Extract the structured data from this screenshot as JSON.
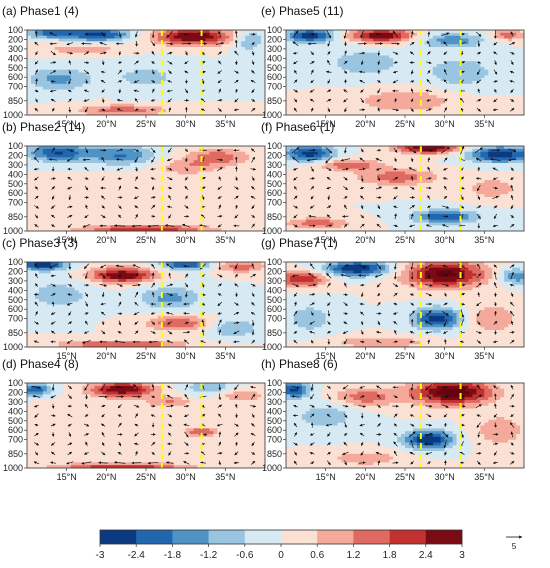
{
  "chart_data": [
    {
      "type": "heatmap",
      "title": "(a) Phase1  (4)",
      "phase": 1,
      "count": 4,
      "x_ticks": [
        "15°N",
        "20°N",
        "25°N",
        "30°N",
        "35°N"
      ],
      "x_values": [
        15,
        20,
        25,
        30,
        35
      ],
      "xlim": [
        10,
        40
      ],
      "y_ticks": [
        "100",
        "200",
        "300",
        "400",
        "500",
        "600",
        "700",
        "850",
        "1000"
      ],
      "y_values": [
        100,
        200,
        300,
        400,
        500,
        600,
        700,
        850,
        1000
      ],
      "ylim": [
        100,
        1000
      ],
      "reference_lines_lat": [
        27,
        32
      ],
      "blobs": [
        {
          "lat": 13,
          "p": 130,
          "v": -2.0,
          "sl": 3,
          "sp": 60
        },
        {
          "lat": 19,
          "p": 150,
          "v": -2.6,
          "sl": 4,
          "sp": 70
        },
        {
          "lat": 31,
          "p": 170,
          "v": 3.0,
          "sl": 5,
          "sp": 90
        },
        {
          "lat": 38,
          "p": 200,
          "v": -1.3,
          "sl": 2,
          "sp": 120
        },
        {
          "lat": 17,
          "p": 300,
          "v": 1.0,
          "sl": 5,
          "sp": 60
        },
        {
          "lat": 14,
          "p": 620,
          "v": -1.4,
          "sl": 4,
          "sp": 120
        },
        {
          "lat": 25,
          "p": 600,
          "v": -0.8,
          "sl": 5,
          "sp": 150
        },
        {
          "lat": 22,
          "p": 950,
          "v": 1.5,
          "sl": 6,
          "sp": 60
        }
      ]
    },
    {
      "type": "heatmap",
      "title": "(b) Phase2  (14)",
      "phase": 2,
      "count": 14,
      "x_ticks": [
        "15°N",
        "20°N",
        "25°N",
        "30°N",
        "35°N"
      ],
      "x_values": [
        15,
        20,
        25,
        30,
        35
      ],
      "xlim": [
        10,
        40
      ],
      "y_ticks": [
        "100",
        "200",
        "300",
        "400",
        "500",
        "600",
        "700",
        "850",
        "1000"
      ],
      "y_values": [
        100,
        200,
        300,
        400,
        500,
        600,
        700,
        850,
        1000
      ],
      "ylim": [
        100,
        1000
      ],
      "reference_lines_lat": [
        27,
        32
      ],
      "blobs": [
        {
          "lat": 14,
          "p": 170,
          "v": -2.4,
          "sl": 4,
          "sp": 90
        },
        {
          "lat": 22,
          "p": 200,
          "v": -1.8,
          "sl": 4,
          "sp": 100
        },
        {
          "lat": 34,
          "p": 220,
          "v": 1.6,
          "sl": 4,
          "sp": 90
        },
        {
          "lat": 30,
          "p": 330,
          "v": 1.0,
          "sl": 4,
          "sp": 80
        },
        {
          "lat": 20,
          "p": 650,
          "v": 0.5,
          "sl": 6,
          "sp": 200
        },
        {
          "lat": 25,
          "p": 980,
          "v": 2.4,
          "sl": 8,
          "sp": 40
        }
      ]
    },
    {
      "type": "heatmap",
      "title": "(c) Phase3  (3)",
      "phase": 3,
      "count": 3,
      "x_ticks": [
        "15°N",
        "20°N",
        "25°N",
        "30°N",
        "35°N"
      ],
      "x_values": [
        15,
        20,
        25,
        30,
        35
      ],
      "xlim": [
        10,
        40
      ],
      "y_ticks": [
        "100",
        "200",
        "300",
        "400",
        "500",
        "600",
        "700",
        "850",
        "1000"
      ],
      "y_values": [
        100,
        200,
        300,
        400,
        500,
        600,
        700,
        850,
        1000
      ],
      "ylim": [
        100,
        1000
      ],
      "reference_lines_lat": [
        27,
        32
      ],
      "blobs": [
        {
          "lat": 12,
          "p": 130,
          "v": -2.8,
          "sl": 3,
          "sp": 60
        },
        {
          "lat": 22,
          "p": 240,
          "v": 3.0,
          "sl": 4,
          "sp": 80
        },
        {
          "lat": 30,
          "p": 130,
          "v": -2.4,
          "sl": 3,
          "sp": 50
        },
        {
          "lat": 37,
          "p": 150,
          "v": 1.6,
          "sl": 3,
          "sp": 60
        },
        {
          "lat": 14,
          "p": 450,
          "v": -1.0,
          "sl": 4,
          "sp": 150
        },
        {
          "lat": 28,
          "p": 480,
          "v": -1.4,
          "sl": 4,
          "sp": 120
        },
        {
          "lat": 29,
          "p": 750,
          "v": 1.8,
          "sl": 4,
          "sp": 80
        },
        {
          "lat": 36,
          "p": 800,
          "v": -1.2,
          "sl": 3,
          "sp": 100
        },
        {
          "lat": 22,
          "p": 970,
          "v": 2.0,
          "sl": 8,
          "sp": 40
        }
      ]
    },
    {
      "type": "heatmap",
      "title": "(d) Phase4  (8)",
      "phase": 4,
      "count": 8,
      "x_ticks": [
        "15°N",
        "20°N",
        "25°N",
        "30°N",
        "35°N"
      ],
      "x_values": [
        15,
        20,
        25,
        30,
        35
      ],
      "xlim": [
        10,
        40
      ],
      "y_ticks": [
        "100",
        "200",
        "300",
        "400",
        "500",
        "600",
        "700",
        "850",
        "1000"
      ],
      "y_values": [
        100,
        200,
        300,
        400,
        500,
        600,
        700,
        850,
        1000
      ],
      "ylim": [
        100,
        1000
      ],
      "reference_lines_lat": [
        27,
        32
      ],
      "blobs": [
        {
          "lat": 11,
          "p": 170,
          "v": -2.4,
          "sl": 2,
          "sp": 60
        },
        {
          "lat": 22,
          "p": 170,
          "v": 3.0,
          "sl": 4,
          "sp": 80
        },
        {
          "lat": 33,
          "p": 150,
          "v": -1.2,
          "sl": 3,
          "sp": 80
        },
        {
          "lat": 37,
          "p": 230,
          "v": 1.2,
          "sl": 3,
          "sp": 70
        },
        {
          "lat": 28,
          "p": 300,
          "v": 1.2,
          "sl": 3,
          "sp": 60
        },
        {
          "lat": 16,
          "p": 500,
          "v": 0.6,
          "sl": 5,
          "sp": 150
        },
        {
          "lat": 32,
          "p": 620,
          "v": 1.8,
          "sl": 2,
          "sp": 50
        },
        {
          "lat": 22,
          "p": 980,
          "v": 2.4,
          "sl": 8,
          "sp": 30
        }
      ]
    },
    {
      "type": "heatmap",
      "title": "(e) Phase5  (11)",
      "phase": 5,
      "count": 11,
      "x_ticks": [
        "15°N",
        "20°N",
        "25°N",
        "30°N",
        "35°N"
      ],
      "x_values": [
        15,
        20,
        25,
        30,
        35
      ],
      "xlim": [
        10,
        40
      ],
      "y_ticks": [
        "100",
        "200",
        "300",
        "400",
        "500",
        "600",
        "700",
        "850",
        "1000"
      ],
      "y_values": [
        100,
        200,
        300,
        400,
        500,
        600,
        700,
        850,
        1000
      ],
      "ylim": [
        100,
        1000
      ],
      "reference_lines_lat": [
        27,
        32
      ],
      "blobs": [
        {
          "lat": 13,
          "p": 160,
          "v": -2.8,
          "sl": 3,
          "sp": 70
        },
        {
          "lat": 22,
          "p": 160,
          "v": 3.0,
          "sl": 4,
          "sp": 70
        },
        {
          "lat": 31,
          "p": 210,
          "v": -1.6,
          "sl": 4,
          "sp": 80
        },
        {
          "lat": 38,
          "p": 150,
          "v": 1.6,
          "sl": 2,
          "sp": 60
        },
        {
          "lat": 20,
          "p": 450,
          "v": -1.0,
          "sl": 5,
          "sp": 150
        },
        {
          "lat": 32,
          "p": 550,
          "v": -1.2,
          "sl": 4,
          "sp": 150
        },
        {
          "lat": 25,
          "p": 850,
          "v": 1.2,
          "sl": 6,
          "sp": 120
        }
      ]
    },
    {
      "type": "heatmap",
      "title": "(f) Phase6  (1)",
      "phase": 6,
      "count": 1,
      "x_ticks": [
        "15°N",
        "20°N",
        "25°N",
        "30°N",
        "35°N"
      ],
      "x_values": [
        15,
        20,
        25,
        30,
        35
      ],
      "xlim": [
        10,
        40
      ],
      "y_ticks": [
        "100",
        "200",
        "300",
        "400",
        "500",
        "600",
        "700",
        "850",
        "1000"
      ],
      "y_values": [
        100,
        200,
        300,
        400,
        500,
        600,
        700,
        850,
        1000
      ],
      "ylim": [
        100,
        1000
      ],
      "reference_lines_lat": [
        27,
        32
      ],
      "blobs": [
        {
          "lat": 13,
          "p": 180,
          "v": -2.8,
          "sl": 3,
          "sp": 80
        },
        {
          "lat": 28,
          "p": 120,
          "v": 3.0,
          "sl": 4,
          "sp": 60
        },
        {
          "lat": 37,
          "p": 190,
          "v": -3.0,
          "sl": 4,
          "sp": 80
        },
        {
          "lat": 18,
          "p": 300,
          "v": 1.6,
          "sl": 4,
          "sp": 60
        },
        {
          "lat": 24,
          "p": 430,
          "v": 1.6,
          "sl": 5,
          "sp": 90
        },
        {
          "lat": 36,
          "p": 550,
          "v": 1.2,
          "sl": 3,
          "sp": 100
        },
        {
          "lat": 30,
          "p": 850,
          "v": -2.4,
          "sl": 4,
          "sp": 70
        },
        {
          "lat": 14,
          "p": 920,
          "v": 1.6,
          "sl": 4,
          "sp": 60
        }
      ]
    },
    {
      "type": "heatmap",
      "title": "(g) Phase7  (1)",
      "phase": 7,
      "count": 1,
      "x_ticks": [
        "15°N",
        "20°N",
        "25°N",
        "30°N",
        "35°N"
      ],
      "x_values": [
        15,
        20,
        25,
        30,
        35
      ],
      "xlim": [
        10,
        40
      ],
      "y_ticks": [
        "100",
        "200",
        "300",
        "400",
        "500",
        "600",
        "700",
        "850",
        "1000"
      ],
      "y_values": [
        100,
        200,
        300,
        400,
        500,
        600,
        700,
        850,
        1000
      ],
      "ylim": [
        100,
        1000
      ],
      "reference_lines_lat": [
        27,
        32
      ],
      "blobs": [
        {
          "lat": 12,
          "p": 280,
          "v": 2.4,
          "sl": 3,
          "sp": 80
        },
        {
          "lat": 19,
          "p": 170,
          "v": -3.0,
          "sl": 4,
          "sp": 80
        },
        {
          "lat": 30,
          "p": 230,
          "v": 3.2,
          "sl": 5,
          "sp": 140
        },
        {
          "lat": 39,
          "p": 250,
          "v": -1.8,
          "sl": 2,
          "sp": 80
        },
        {
          "lat": 13,
          "p": 700,
          "v": -1.0,
          "sl": 3,
          "sp": 150
        },
        {
          "lat": 29,
          "p": 700,
          "v": -2.8,
          "sl": 3,
          "sp": 110
        },
        {
          "lat": 36,
          "p": 700,
          "v": 1.2,
          "sl": 3,
          "sp": 150
        },
        {
          "lat": 22,
          "p": 950,
          "v": 1.2,
          "sl": 6,
          "sp": 60
        }
      ]
    },
    {
      "type": "heatmap",
      "title": "(h) Phase8  (6)",
      "phase": 8,
      "count": 6,
      "x_ticks": [
        "15°N",
        "20°N",
        "25°N",
        "30°N",
        "35°N"
      ],
      "x_values": [
        15,
        20,
        25,
        30,
        35
      ],
      "xlim": [
        10,
        40
      ],
      "y_ticks": [
        "100",
        "200",
        "300",
        "400",
        "500",
        "600",
        "700",
        "850",
        "1000"
      ],
      "y_values": [
        100,
        200,
        300,
        400,
        500,
        600,
        700,
        850,
        1000
      ],
      "ylim": [
        100,
        1000
      ],
      "reference_lines_lat": [
        27,
        32
      ],
      "blobs": [
        {
          "lat": 11,
          "p": 170,
          "v": -2.6,
          "sl": 2,
          "sp": 80
        },
        {
          "lat": 20,
          "p": 250,
          "v": 1.6,
          "sl": 4,
          "sp": 100
        },
        {
          "lat": 31,
          "p": 200,
          "v": 3.4,
          "sl": 5,
          "sp": 130
        },
        {
          "lat": 15,
          "p": 450,
          "v": -1.0,
          "sl": 4,
          "sp": 150
        },
        {
          "lat": 28,
          "p": 700,
          "v": -3.0,
          "sl": 3,
          "sp": 100
        },
        {
          "lat": 37,
          "p": 600,
          "v": 1.2,
          "sl": 3,
          "sp": 150
        },
        {
          "lat": 20,
          "p": 900,
          "v": 1.0,
          "sl": 5,
          "sp": 80
        }
      ]
    }
  ],
  "colorbar": {
    "labels": [
      "-3",
      "-2.4",
      "-1.8",
      "-1.2",
      "-0.6",
      "0",
      "0.6",
      "1.2",
      "1.8",
      "2.4",
      "3"
    ],
    "levels": [
      -3,
      -2.4,
      -1.8,
      -1.2,
      -0.6,
      0,
      0.6,
      1.2,
      1.8,
      2.4,
      3
    ],
    "colors": [
      "#0b3a80",
      "#2266b0",
      "#4f93c6",
      "#99c5e1",
      "#d7eaf4",
      "#fbe0d4",
      "#f4a99b",
      "#e06a62",
      "#c1312f",
      "#7a0a14"
    ],
    "under_color": "#08306b",
    "over_color": "#67000d"
  },
  "reference_arrow": {
    "label": "5",
    "magnitude": 5
  },
  "styles": {
    "reference_line_color": "#ffff00",
    "arrow_color": "#111111"
  }
}
